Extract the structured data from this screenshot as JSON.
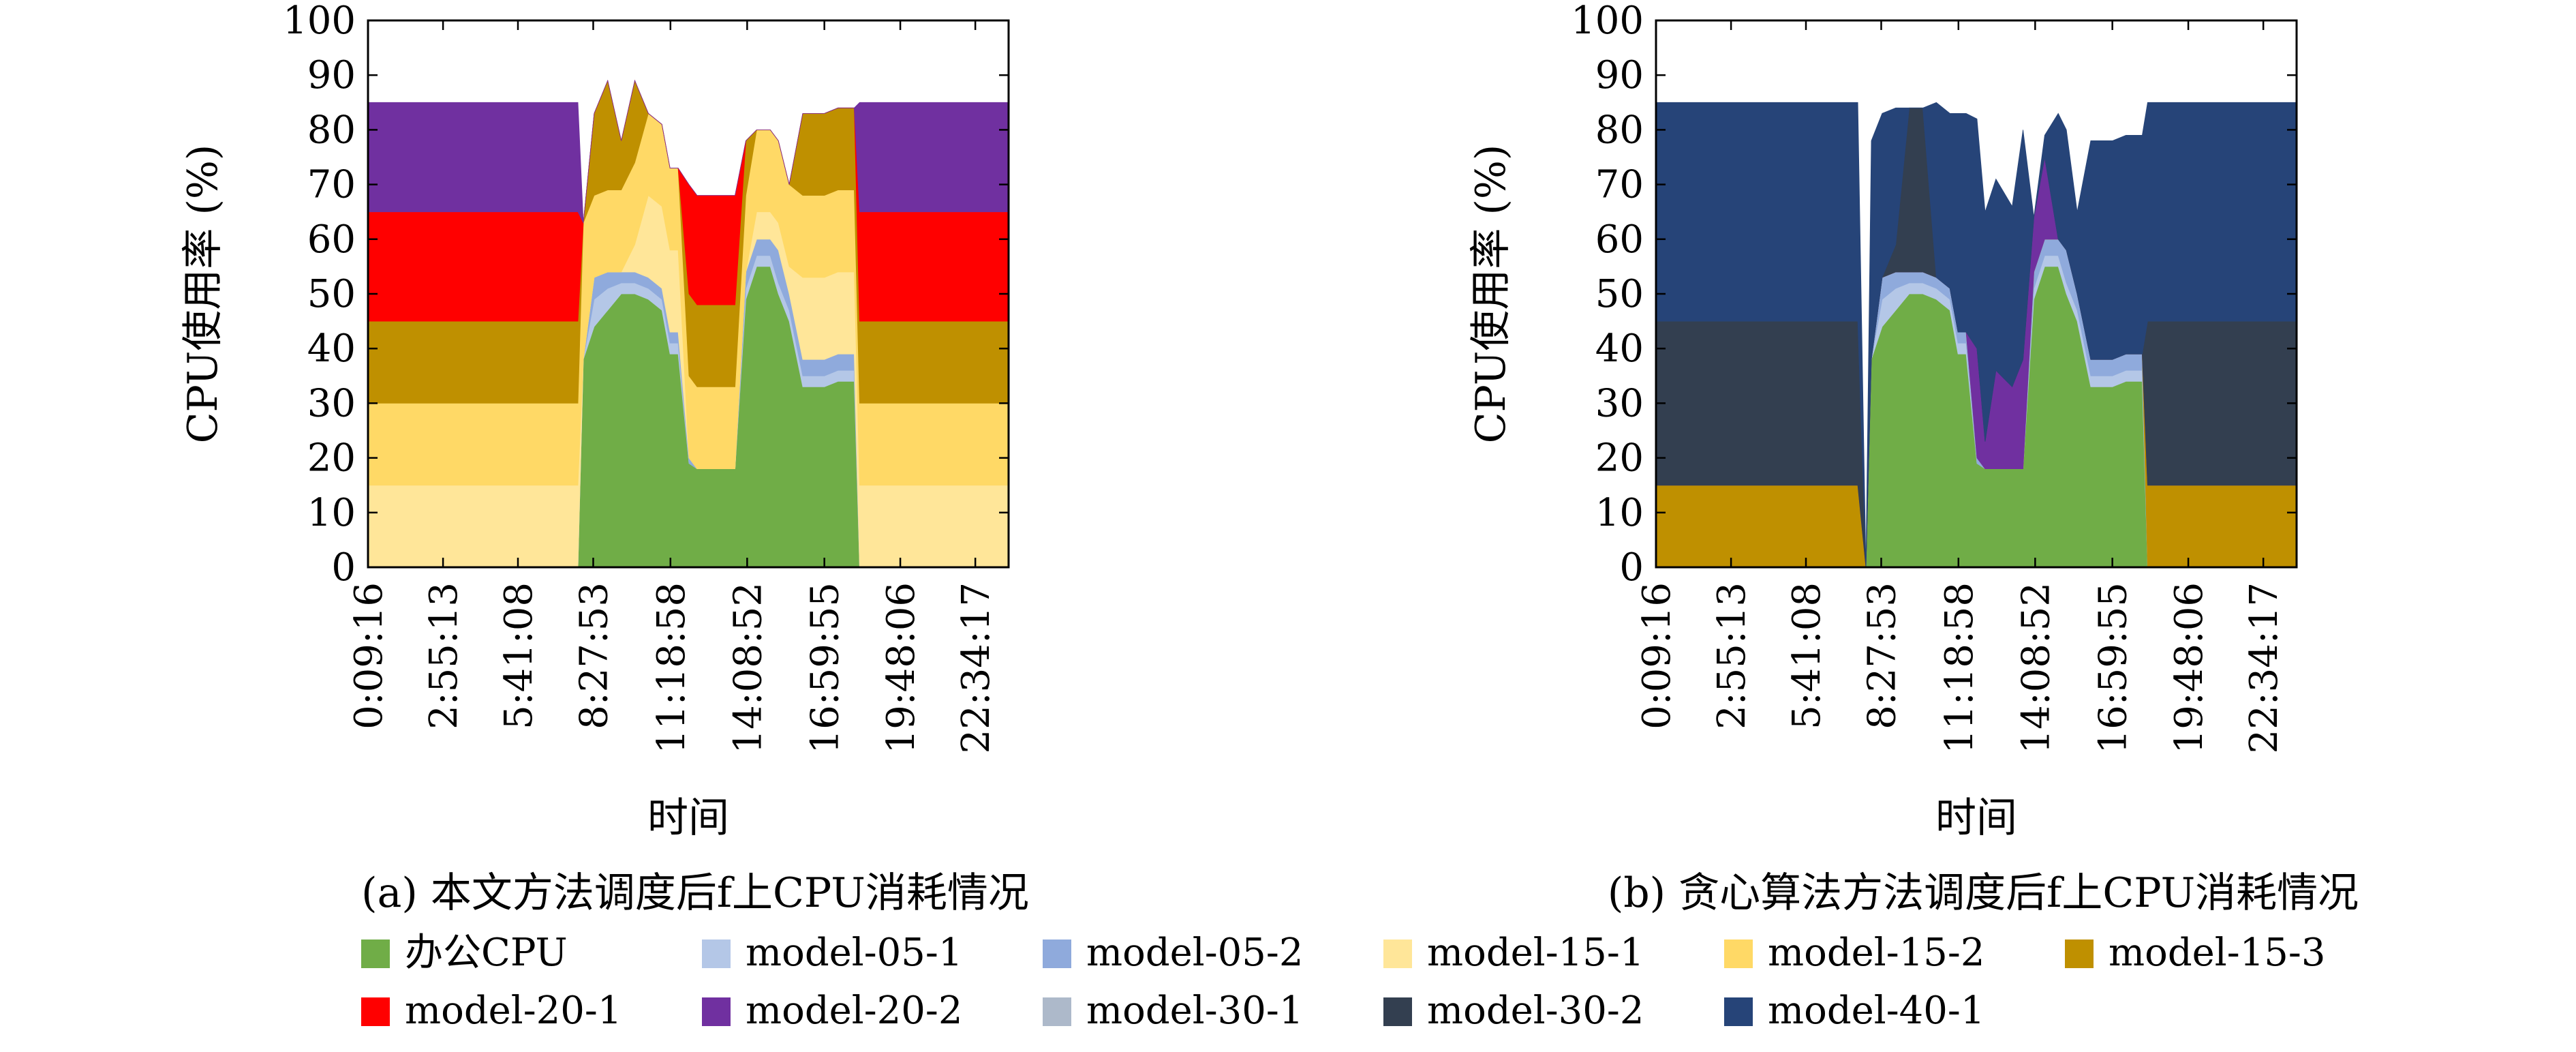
{
  "colors": {
    "办公CPU": "#70ad47",
    "model-05-1": "#b4c7e7",
    "model-05-2": "#8faadc",
    "model-15-1": "#ffe699",
    "model-15-2": "#ffd966",
    "model-15-3": "#bf9000",
    "model-20-1": "#ff0000",
    "model-20-2": "#7030a0",
    "model-30-1": "#adb9ca",
    "model-30-2": "#333f50",
    "model-40-1": "#264478"
  },
  "legend": [
    "办公CPU",
    "model-05-1",
    "model-05-2",
    "model-15-1",
    "model-15-2",
    "model-15-3",
    "model-20-1",
    "model-20-2",
    "model-30-1",
    "model-30-2",
    "model-40-1"
  ],
  "chart_data": [
    {
      "type": "area",
      "stacked": true,
      "caption": "(a) 本文方法调度后f上CPU消耗情况",
      "xlabel": "时间",
      "ylabel": "CPU使用率 (%)",
      "ylim": [
        0,
        100
      ],
      "yticks": [
        "0",
        "10",
        "20",
        "30",
        "40",
        "50",
        "60",
        "70",
        "80",
        "90",
        "100"
      ],
      "xticks": [
        "0:09:16",
        "2:55:13",
        "5:41:08",
        "8:27:53",
        "11:18:58",
        "14:08:52",
        "16:59:55",
        "19:48:06",
        "22:34:17"
      ],
      "x_hours": [
        0.15,
        7.9,
        8.1,
        8.5,
        9,
        9.5,
        10,
        10.5,
        11,
        11.3,
        11.6,
        12,
        12.3,
        12.7,
        13.3,
        13.7,
        14.1,
        14.5,
        15,
        15.3,
        15.7,
        16.2,
        16.6,
        17,
        17.5,
        18.1,
        18.3,
        23.8
      ],
      "series": [
        {
          "name": "办公CPU",
          "values": [
            0,
            0,
            38,
            44,
            47,
            50,
            50,
            49,
            47,
            39,
            39,
            19,
            18,
            18,
            18,
            18,
            49,
            55,
            55,
            50,
            45,
            33,
            33,
            33,
            34,
            34,
            0,
            0
          ]
        },
        {
          "name": "model-05-1",
          "values": [
            0,
            0,
            0,
            5,
            4,
            2,
            2,
            2,
            2,
            2,
            2,
            0,
            0,
            0,
            0,
            0,
            2,
            2,
            2,
            2,
            2,
            2,
            2,
            2,
            2,
            2,
            0,
            0
          ]
        },
        {
          "name": "model-05-2",
          "values": [
            0,
            0,
            0,
            4,
            3,
            2,
            2,
            2,
            2,
            2,
            2,
            1,
            0,
            0,
            0,
            0,
            3,
            3,
            3,
            6,
            3,
            3,
            3,
            3,
            3,
            3,
            0,
            0
          ]
        },
        {
          "name": "model-15-1",
          "values": [
            15,
            15,
            0,
            0,
            0,
            0,
            5,
            15,
            15,
            15,
            15,
            0,
            0,
            0,
            0,
            0,
            0,
            5,
            5,
            5,
            5,
            15,
            15,
            15,
            15,
            15,
            15,
            15
          ]
        },
        {
          "name": "model-15-2",
          "values": [
            15,
            15,
            25,
            15,
            15,
            15,
            15,
            15,
            15,
            15,
            15,
            15,
            15,
            15,
            15,
            15,
            14,
            15,
            15,
            15,
            15,
            15,
            15,
            15,
            15,
            15,
            15,
            15
          ]
        },
        {
          "name": "model-15-3",
          "values": [
            15,
            15,
            0,
            15,
            20,
            9,
            15,
            0,
            0,
            0,
            0,
            15,
            15,
            15,
            15,
            15,
            10,
            0,
            0,
            0,
            0,
            15,
            15,
            15,
            15,
            15,
            15,
            15
          ]
        },
        {
          "name": "model-20-1",
          "values": [
            20,
            20,
            0,
            0,
            0,
            0,
            0,
            0,
            0,
            0,
            0,
            20,
            20,
            20,
            20,
            20,
            0,
            0,
            0,
            0,
            0,
            0,
            0,
            0,
            0,
            0,
            20,
            20
          ]
        },
        {
          "name": "model-20-2",
          "values": [
            20,
            20,
            0,
            0,
            0,
            0,
            0,
            0,
            0,
            0,
            0,
            0,
            0,
            0,
            0,
            0,
            0,
            0,
            0,
            0,
            0,
            0,
            0,
            0,
            0,
            0,
            20,
            20
          ]
        },
        {
          "name": "model-30-1",
          "values": [
            0,
            0,
            0,
            0,
            0,
            0,
            0,
            0,
            0,
            0,
            0,
            0,
            0,
            0,
            0,
            0,
            0,
            0,
            0,
            0,
            0,
            0,
            0,
            0,
            0,
            0,
            0,
            0
          ]
        },
        {
          "name": "model-30-2",
          "values": [
            0,
            0,
            0,
            0,
            0,
            0,
            0,
            0,
            0,
            0,
            0,
            0,
            0,
            0,
            0,
            0,
            0,
            0,
            0,
            0,
            0,
            0,
            0,
            0,
            0,
            0,
            0,
            0
          ]
        },
        {
          "name": "model-40-1",
          "values": [
            0,
            0,
            0,
            0,
            0,
            0,
            0,
            0,
            0,
            0,
            0,
            0,
            0,
            0,
            0,
            0,
            0,
            0,
            0,
            0,
            0,
            0,
            0,
            0,
            0,
            0,
            0,
            0
          ]
        }
      ]
    },
    {
      "type": "area",
      "stacked": true,
      "caption": "(b) 贪心算法方法调度后f上CPU消耗情况",
      "xlabel": "时间",
      "ylabel": "CPU使用率 (%)",
      "ylim": [
        0,
        100
      ],
      "yticks": [
        "0",
        "10",
        "20",
        "30",
        "40",
        "50",
        "60",
        "70",
        "80",
        "90",
        "100"
      ],
      "xticks": [
        "0:09:16",
        "2:55:13",
        "5:41:08",
        "8:27:53",
        "11:18:58",
        "14:08:52",
        "16:59:55",
        "19:48:06",
        "22:34:17"
      ],
      "x_hours": [
        0.15,
        7.6,
        7.9,
        8.1,
        8.5,
        9,
        9.5,
        10,
        10.5,
        11,
        11.3,
        11.6,
        12,
        12.3,
        12.7,
        13.3,
        13.7,
        14.1,
        14.5,
        15,
        15.3,
        15.7,
        16.2,
        16.6,
        17,
        17.5,
        18.1,
        18.3,
        23.8
      ],
      "series": [
        {
          "name": "办公CPU",
          "values": [
            0,
            0,
            0,
            38,
            44,
            47,
            50,
            50,
            49,
            47,
            39,
            39,
            19,
            18,
            18,
            18,
            18,
            49,
            55,
            55,
            50,
            45,
            33,
            33,
            33,
            34,
            34,
            0,
            0
          ]
        },
        {
          "name": "model-05-1",
          "values": [
            0,
            0,
            0,
            0,
            5,
            4,
            2,
            2,
            2,
            2,
            2,
            2,
            0,
            0,
            0,
            0,
            0,
            2,
            2,
            2,
            2,
            2,
            2,
            2,
            2,
            2,
            2,
            0,
            0
          ]
        },
        {
          "name": "model-05-2",
          "values": [
            0,
            0,
            0,
            0,
            4,
            3,
            2,
            2,
            2,
            2,
            2,
            2,
            1,
            0,
            0,
            0,
            0,
            3,
            3,
            3,
            6,
            3,
            3,
            3,
            3,
            3,
            3,
            0,
            0
          ]
        },
        {
          "name": "model-15-1",
          "values": [
            0,
            0,
            0,
            0,
            0,
            0,
            0,
            0,
            0,
            0,
            0,
            0,
            0,
            0,
            0,
            0,
            0,
            0,
            0,
            0,
            0,
            0,
            0,
            0,
            0,
            0,
            0,
            0,
            0
          ]
        },
        {
          "name": "model-15-2",
          "values": [
            0,
            0,
            0,
            0,
            0,
            0,
            0,
            0,
            0,
            0,
            0,
            0,
            0,
            0,
            0,
            0,
            0,
            0,
            0,
            0,
            0,
            0,
            0,
            0,
            0,
            0,
            0,
            0,
            0
          ]
        },
        {
          "name": "model-15-3",
          "values": [
            15,
            15,
            0,
            0,
            0,
            0,
            0,
            0,
            0,
            0,
            0,
            0,
            0,
            0,
            0,
            0,
            0,
            0,
            0,
            0,
            0,
            0,
            0,
            0,
            0,
            0,
            0,
            15,
            15
          ]
        },
        {
          "name": "model-20-1",
          "values": [
            0,
            0,
            0,
            0,
            0,
            0,
            0,
            0,
            0,
            0,
            0,
            0,
            0,
            0,
            0,
            0,
            0,
            0,
            0,
            0,
            0,
            0,
            0,
            0,
            0,
            0,
            0,
            0,
            0
          ]
        },
        {
          "name": "model-20-2",
          "values": [
            0,
            0,
            0,
            0,
            0,
            0,
            0,
            0,
            0,
            0,
            0,
            0,
            20,
            5,
            18,
            15,
            20,
            10,
            15,
            0,
            0,
            0,
            0,
            0,
            0,
            0,
            0,
            0,
            0
          ]
        },
        {
          "name": "model-30-1",
          "values": [
            0,
            0,
            0,
            0,
            0,
            0,
            0,
            0,
            0,
            0,
            0,
            0,
            0,
            0,
            0,
            0,
            0,
            0,
            0,
            0,
            0,
            0,
            0,
            0,
            0,
            0,
            0,
            0,
            0
          ]
        },
        {
          "name": "model-30-2",
          "values": [
            30,
            30,
            0,
            0,
            0,
            5,
            30,
            30,
            0,
            0,
            0,
            0,
            0,
            0,
            0,
            0,
            0,
            0,
            0,
            0,
            0,
            0,
            0,
            0,
            0,
            0,
            0,
            30,
            30
          ]
        },
        {
          "name": "model-40-1",
          "values": [
            40,
            40,
            0,
            40,
            30,
            25,
            0,
            0,
            32,
            32,
            40,
            40,
            42,
            42,
            35,
            33,
            42,
            0,
            4,
            23,
            22,
            15,
            40,
            40,
            40,
            40,
            40,
            40,
            40
          ]
        }
      ]
    }
  ]
}
